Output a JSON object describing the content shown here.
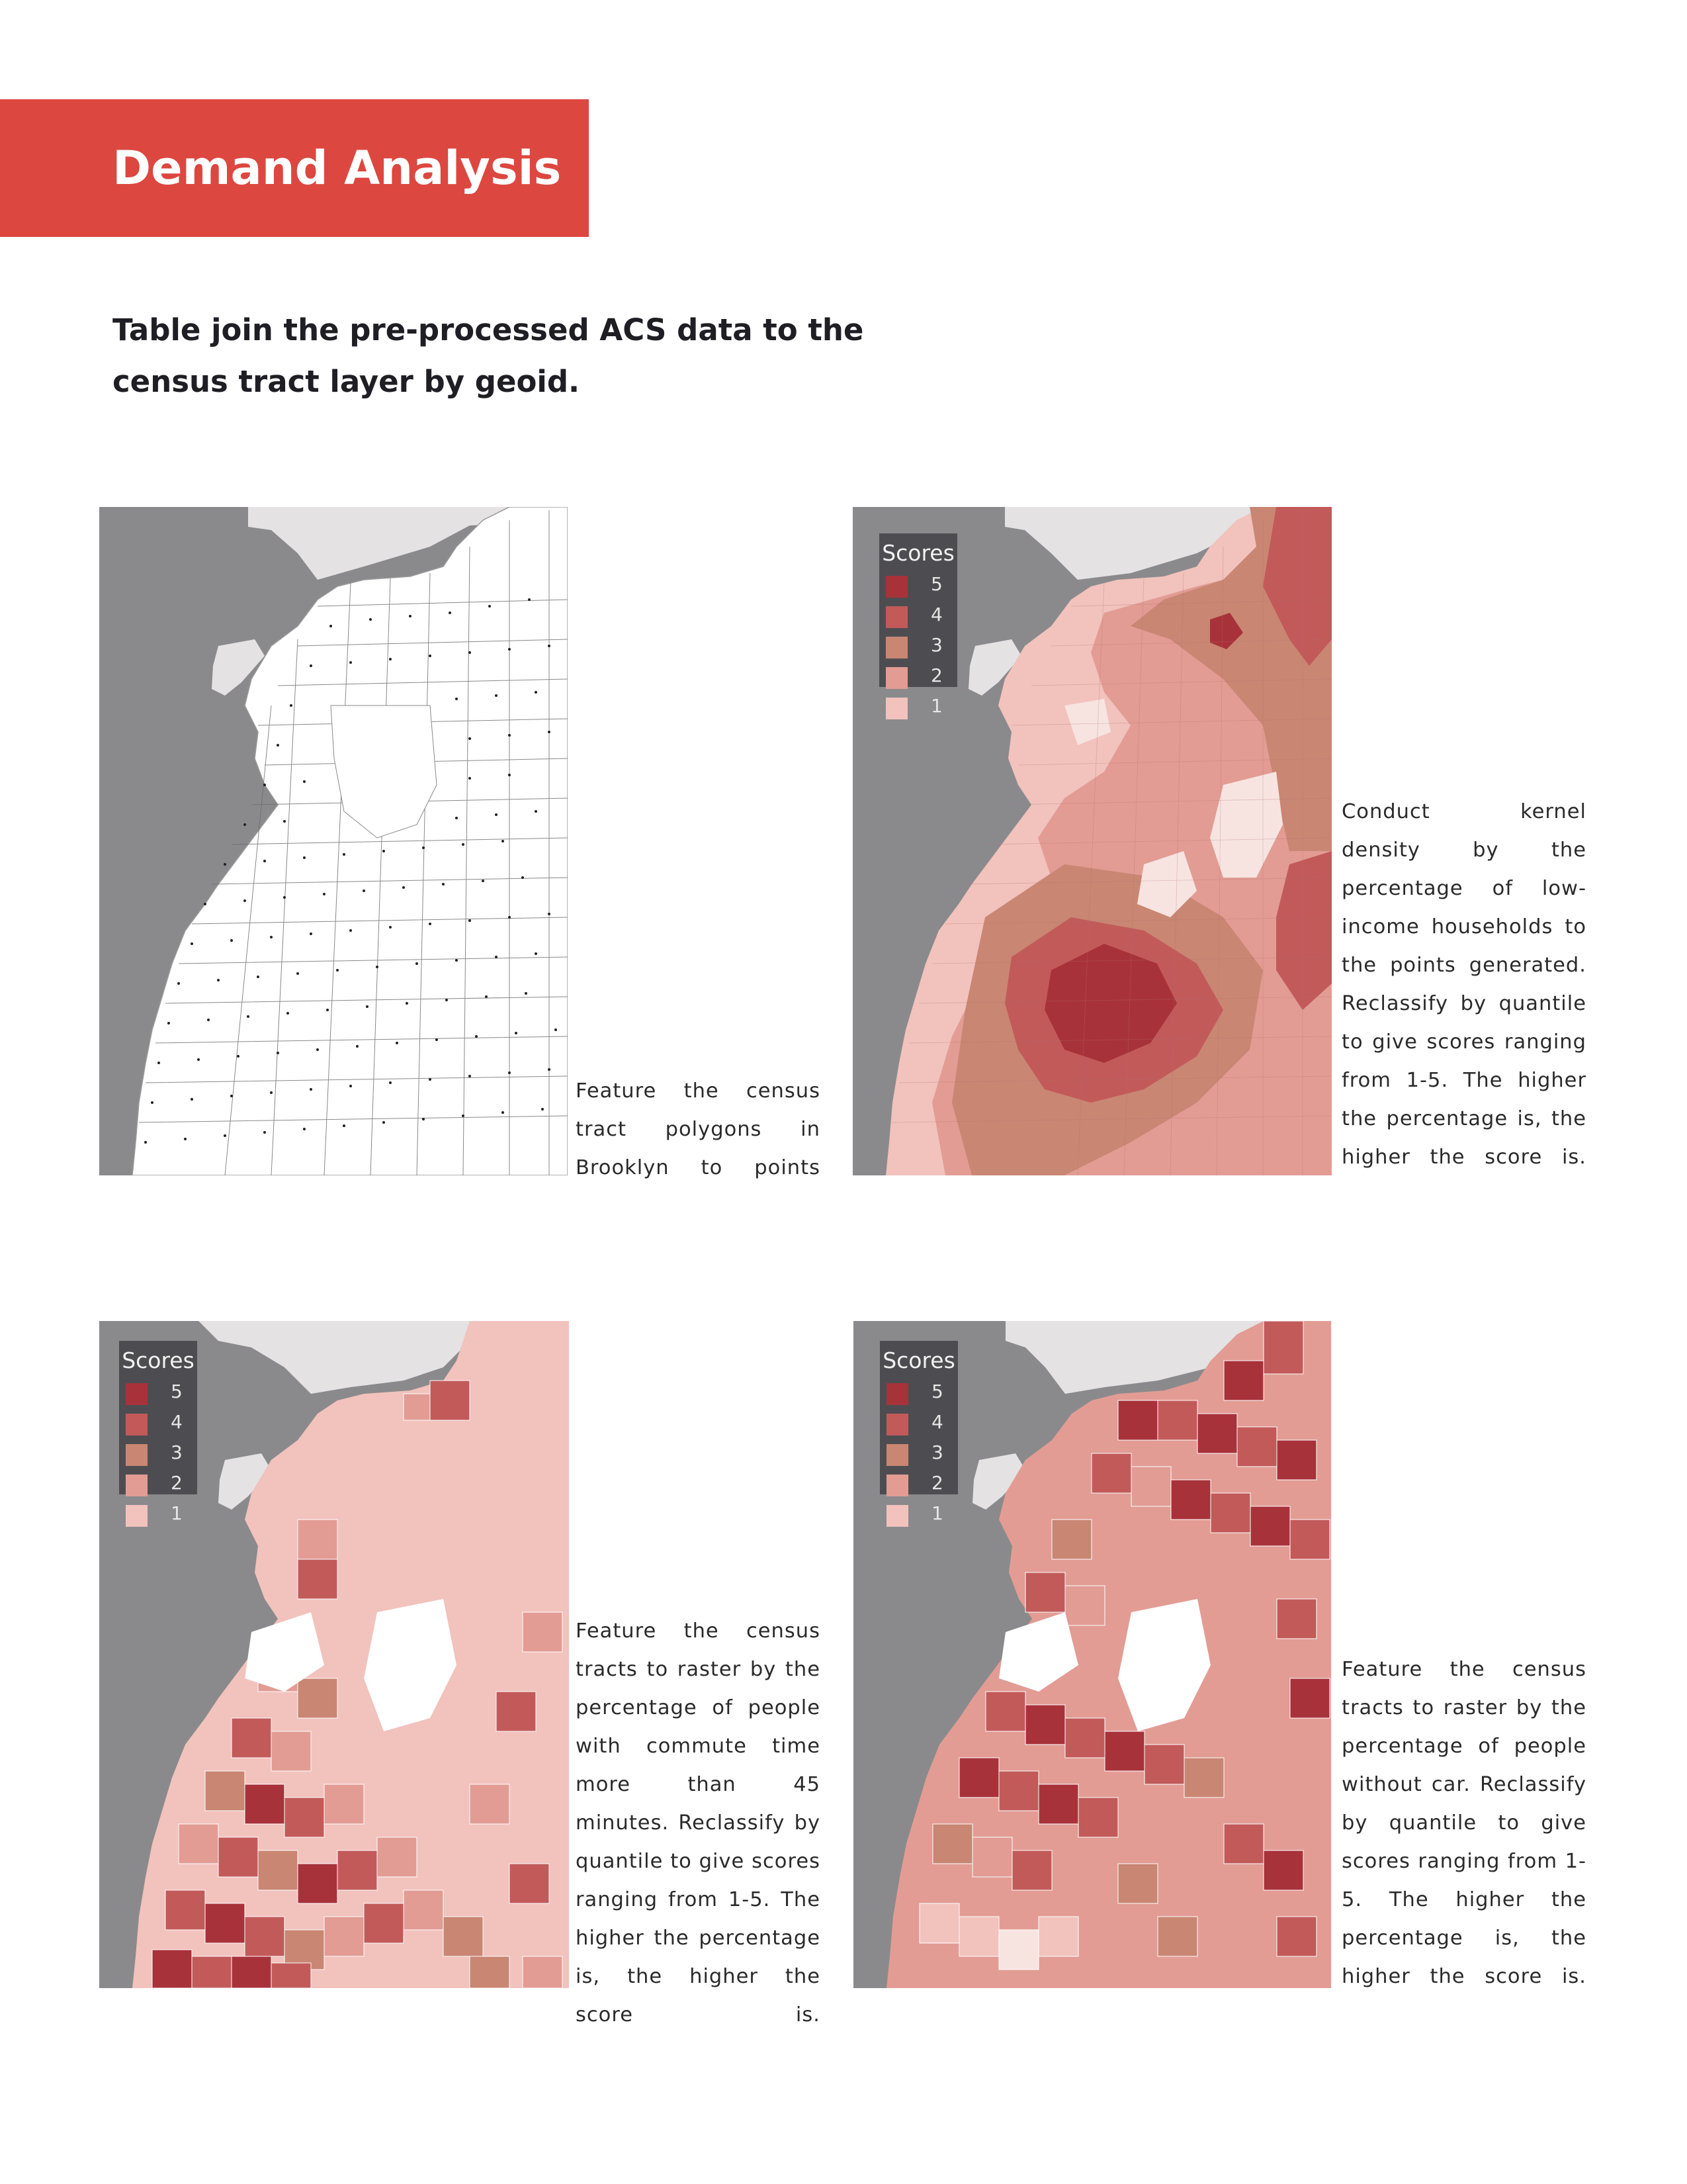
{
  "header": {
    "title": "Demand Analysis"
  },
  "subtitle": "Table join the pre-processed ACS data to the census tract layer by geoid.",
  "colors": {
    "brand_red": "#dc4740",
    "water": "#8a8a8c",
    "manhattan": "#e4e2e3",
    "score_5": "#a8323a",
    "score_4": "#c25a5a",
    "score_3": "#c98673",
    "score_2": "#e29c94",
    "score_1": "#f2c2bd"
  },
  "legend": {
    "title": "Scores",
    "items": [
      {
        "label": "5",
        "color": "#a8323a"
      },
      {
        "label": "4",
        "color": "#c25a5a"
      },
      {
        "label": "3",
        "color": "#c98673"
      },
      {
        "label": "2",
        "color": "#e29c94"
      },
      {
        "label": "1",
        "color": "#f2c2bd"
      }
    ]
  },
  "panels": {
    "tracts": {
      "caption": "Feature the census tract polygons in Brooklyn to points"
    },
    "kernel": {
      "caption": "Conduct kernel density by the percentage of low-income households to the points generated. Reclassify by quantile to give scores ranging from 1-5. The higher the percentage is, the higher the score is."
    },
    "commute": {
      "caption": "Feature the census tracts to raster by the percentage of people with commute time more than 45 minutes. Reclassify by quantile to give scores ranging from 1-5. The higher the percentage is, the higher the score is."
    },
    "car": {
      "caption": "Feature the census tracts to raster by the percentage of people without car. Reclassify by quantile to give scores ranging from 1-5. The higher the percentage is, the higher the score is."
    }
  }
}
